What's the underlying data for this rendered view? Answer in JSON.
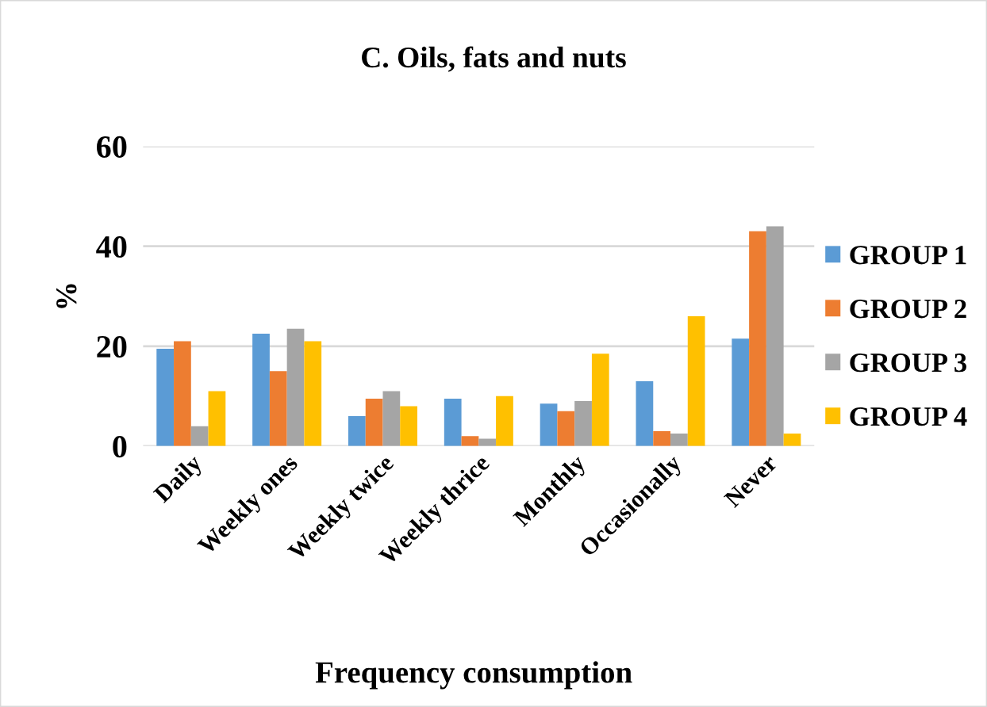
{
  "chart_data": {
    "type": "bar",
    "title": "C. Oils, fats and nuts",
    "xlabel": "Frequency consumption",
    "ylabel": "%",
    "categories": [
      "Daily",
      "Weekly ones",
      "Weekly twice",
      "Weekly thrice",
      "Monthly",
      "Occasionally",
      "Never"
    ],
    "series": [
      {
        "name": "GROUP 1",
        "color": "#5b9bd5",
        "values": [
          19.5,
          22.5,
          6,
          9.5,
          8.5,
          13,
          21.5
        ]
      },
      {
        "name": "GROUP 2",
        "color": "#ed7d31",
        "values": [
          21,
          15,
          9.5,
          2,
          7,
          3,
          43
        ]
      },
      {
        "name": "GROUP 3",
        "color": "#a5a5a5",
        "values": [
          4,
          23.5,
          11,
          1.5,
          9,
          2.5,
          44
        ]
      },
      {
        "name": "GROUP 4",
        "color": "#ffc000",
        "values": [
          11,
          21,
          8,
          10,
          18.5,
          26,
          2.5
        ]
      }
    ],
    "ylim": [
      0,
      60
    ],
    "yticks": [
      0,
      20,
      40,
      60
    ],
    "grid": "y",
    "legend": "right"
  }
}
